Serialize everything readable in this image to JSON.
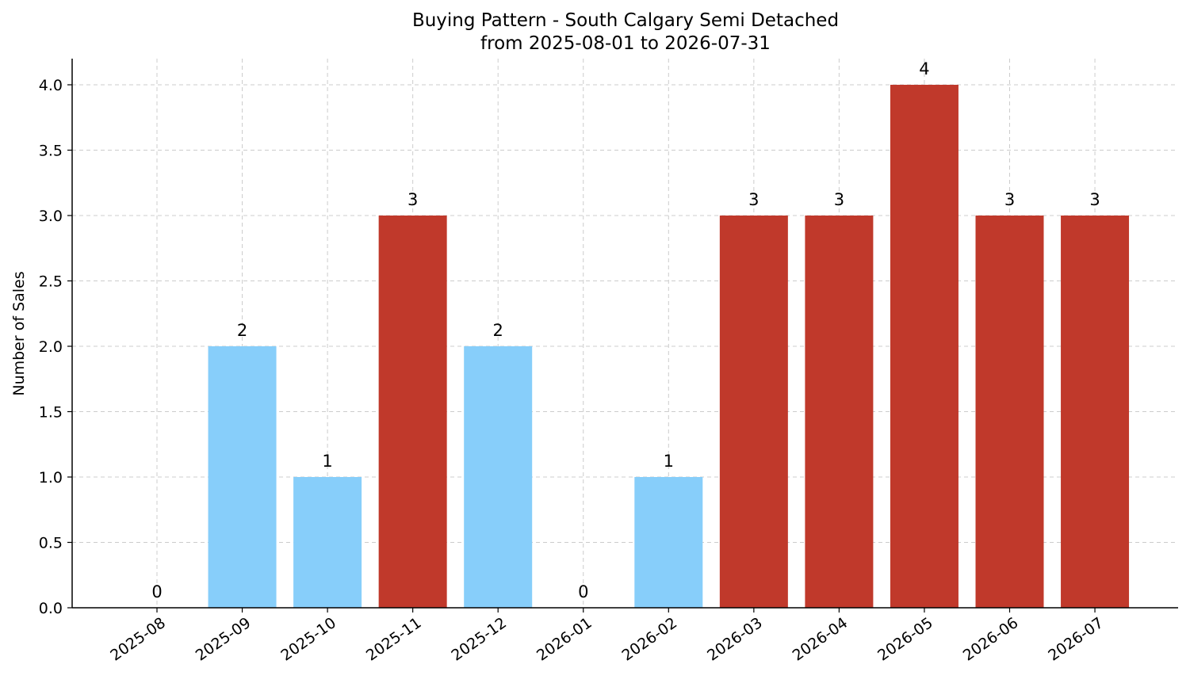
{
  "chart_data": {
    "type": "bar",
    "title": "Buying Pattern - South Calgary Semi Detached",
    "subtitle": "from 2025-08-01 to 2026-07-31",
    "xlabel": "",
    "ylabel": "Number of Sales",
    "categories": [
      "2025-08",
      "2025-09",
      "2025-10",
      "2025-11",
      "2025-12",
      "2026-01",
      "2026-02",
      "2026-03",
      "2026-04",
      "2026-05",
      "2026-06",
      "2026-07"
    ],
    "values": [
      0,
      2,
      1,
      3,
      2,
      0,
      1,
      3,
      3,
      4,
      3,
      3
    ],
    "bar_labels": [
      "0",
      "2",
      "1",
      "3",
      "2",
      "0",
      "1",
      "3",
      "3",
      "4",
      "3",
      "3"
    ],
    "ylim": [
      0,
      4.2
    ],
    "yticks": [
      0,
      0.5,
      1.0,
      1.5,
      2.0,
      2.5,
      3.0,
      3.5,
      4.0
    ],
    "ytick_labels": [
      "0.0",
      "0.5",
      "1.0",
      "1.5",
      "2.0",
      "2.5",
      "3.0",
      "3.5",
      "4.0"
    ],
    "grid": true,
    "colors": {
      "high": "#c0392b",
      "low": "#87cefa"
    },
    "high_threshold": 3
  }
}
